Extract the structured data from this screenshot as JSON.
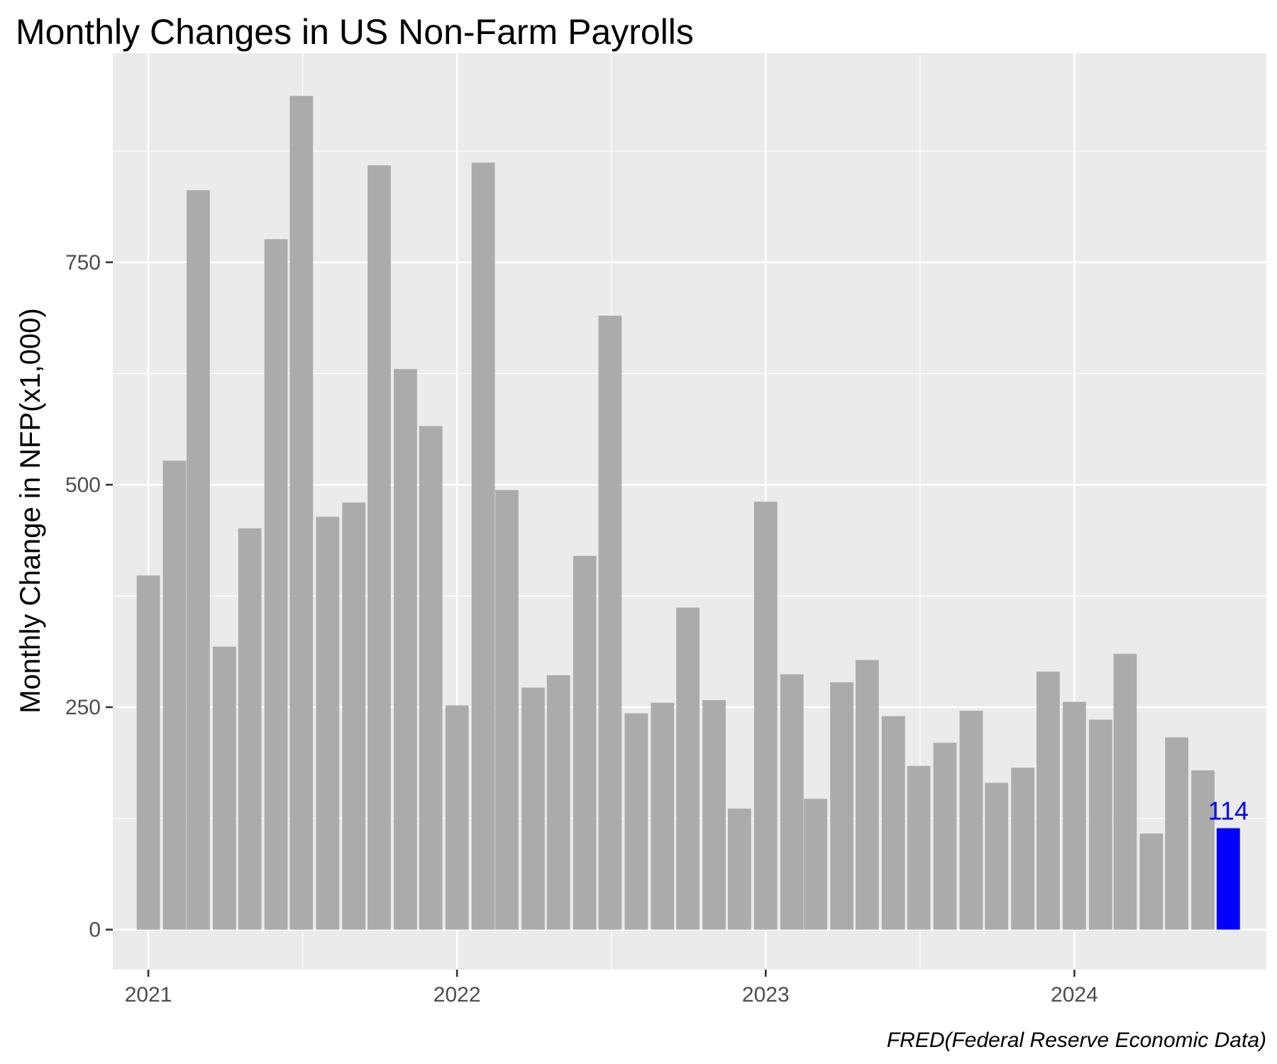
{
  "chart_data": {
    "type": "bar",
    "title": "Monthly Changes in US Non-Farm Payrolls",
    "xlabel": "",
    "ylabel": "Monthly Change in NFP(x1,000)",
    "caption": "FRED(Federal Reserve Economic Data)",
    "ylim": [
      -45,
      985
    ],
    "y_ticks": [
      0,
      250,
      500,
      750
    ],
    "y_tick_labels": [
      "0",
      "250",
      "500",
      "750"
    ],
    "x_ticks": [
      "2021-01-01",
      "2022-01-01",
      "2023-01-01",
      "2024-01-01"
    ],
    "x_tick_labels": [
      "2021",
      "2022",
      "2023",
      "2024"
    ],
    "xlim": [
      "2020-11-20",
      "2024-08-15"
    ],
    "grid": true,
    "legend": "none",
    "colors": {
      "bar": "#ababab",
      "highlight": "#0000ff",
      "panel": "#ebebeb",
      "grid": "#ffffff"
    },
    "highlight_label": "114",
    "x": [
      "2021-01-01",
      "2021-02-01",
      "2021-03-01",
      "2021-04-01",
      "2021-05-01",
      "2021-06-01",
      "2021-07-01",
      "2021-08-01",
      "2021-09-01",
      "2021-10-01",
      "2021-11-01",
      "2021-12-01",
      "2022-01-01",
      "2022-02-01",
      "2022-03-01",
      "2022-04-01",
      "2022-05-01",
      "2022-06-01",
      "2022-07-01",
      "2022-08-01",
      "2022-09-01",
      "2022-10-01",
      "2022-11-01",
      "2022-12-01",
      "2023-01-01",
      "2023-02-01",
      "2023-03-01",
      "2023-04-01",
      "2023-05-01",
      "2023-06-01",
      "2023-07-01",
      "2023-08-01",
      "2023-09-01",
      "2023-10-01",
      "2023-11-01",
      "2023-12-01",
      "2024-01-01",
      "2024-02-01",
      "2024-03-01",
      "2024-04-01",
      "2024-05-01",
      "2024-06-01",
      "2024-07-01"
    ],
    "values": [
      398,
      527,
      831,
      318,
      451,
      776,
      937,
      464,
      480,
      859,
      630,
      566,
      252,
      862,
      494,
      272,
      286,
      420,
      690,
      243,
      255,
      362,
      258,
      136,
      481,
      287,
      147,
      278,
      303,
      240,
      184,
      210,
      246,
      165,
      182,
      290,
      256,
      236,
      310,
      108,
      216,
      179,
      114
    ]
  }
}
